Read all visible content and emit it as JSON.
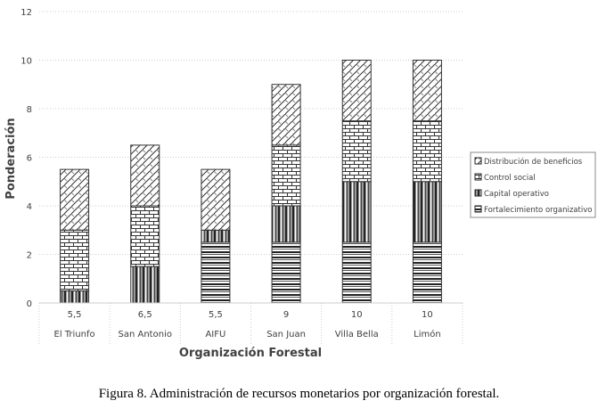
{
  "chart_data": {
    "type": "bar",
    "stacked": true,
    "categories": [
      "El Triunfo",
      "San Antonio",
      "AIFU",
      "San Juan",
      "Villa Bella",
      "Limón"
    ],
    "totals_row": [
      "5,5",
      "6,5",
      "5,5",
      "9",
      "10",
      "10"
    ],
    "series": [
      {
        "name": "Fortalecimiento organizativo",
        "pattern": "horizontal",
        "values": [
          0,
          0,
          2.5,
          2.5,
          2.5,
          2.5
        ]
      },
      {
        "name": "Capital operativo",
        "pattern": "vertical",
        "values": [
          0.5,
          1.5,
          0.5,
          1.5,
          2.5,
          2.5
        ]
      },
      {
        "name": "Control social",
        "pattern": "brick",
        "values": [
          2.5,
          2.5,
          0,
          2.5,
          2.5,
          2.5
        ]
      },
      {
        "name": "Distribución de beneficios",
        "pattern": "diagonal-cross",
        "values": [
          2.5,
          2.5,
          2.5,
          2.5,
          2.5,
          2.5
        ]
      }
    ],
    "xlabel": "Organización Forestal",
    "ylabel": "Ponderación",
    "ylim": [
      0,
      12
    ],
    "yticks": [
      0,
      2,
      4,
      6,
      8,
      10,
      12
    ],
    "grid": true,
    "legend_position": "right"
  },
  "caption": "Figura 8. Administración de recursos monetarios por organización forestal."
}
